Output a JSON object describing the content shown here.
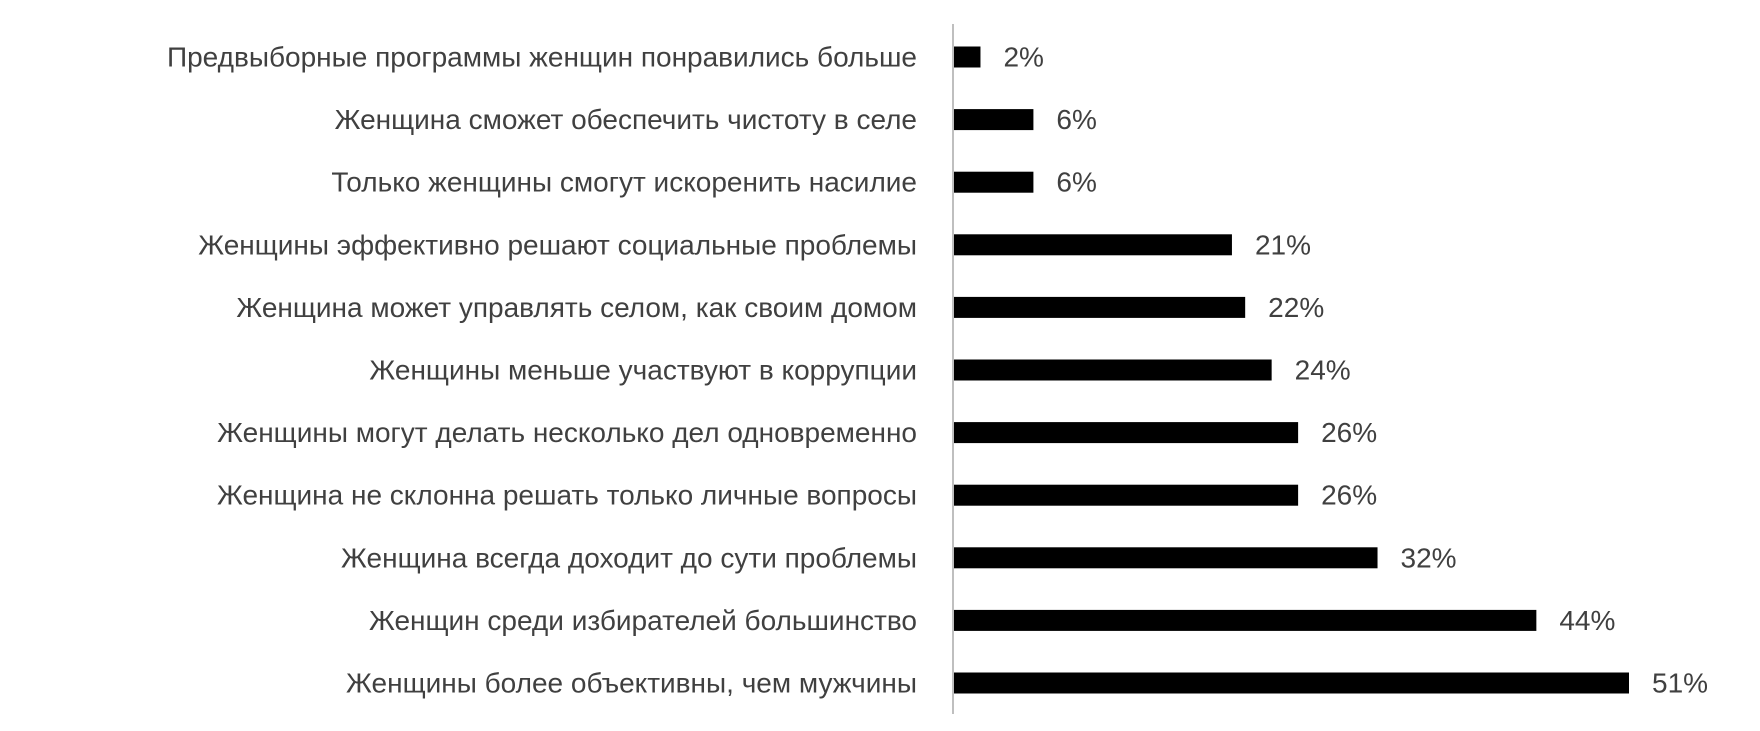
{
  "chart_data": {
    "type": "bar",
    "orientation": "horizontal",
    "title": "",
    "xlabel": "",
    "ylabel": "",
    "grid": false,
    "legend": "none",
    "xlim": [
      0,
      51
    ],
    "bar_color": "#000000",
    "axis_color": "#bfbfbf",
    "text_color": "#404040",
    "categories": [
      "Предвыборные программы женщин понравились больше",
      "Женщина сможет обеспечить чистоту в селе",
      "Только женщины смогут искоренить насилие",
      "Женщины эффективно решают социальные проблемы",
      "Женщина может управлять селом, как своим домом",
      "Женщины меньше участвуют в коррупции",
      "Женщины могут делать несколько дел одновременно",
      "Женщина не склонна решать только личные вопросы",
      "Женщина всегда доходит до сути проблемы",
      "Женщин среди избирателей большинство",
      "Женщины более объективны, чем мужчины"
    ],
    "values": [
      2,
      6,
      6,
      21,
      22,
      24,
      26,
      26,
      32,
      44,
      51
    ],
    "value_labels": [
      "2%",
      "6%",
      "6%",
      "21%",
      "22%",
      "24%",
      "26%",
      "26%",
      "32%",
      "44%",
      "51%"
    ]
  }
}
